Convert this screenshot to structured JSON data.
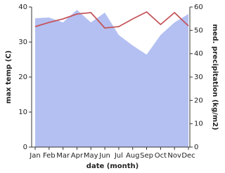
{
  "chart_data": {
    "type": "line",
    "categories": [
      "Jan",
      "Feb",
      "Mar",
      "Apr",
      "May",
      "Jun",
      "Jul",
      "Aug",
      "Sep",
      "Oct",
      "Nov",
      "Dec"
    ],
    "x_label": "date (month)",
    "y_label": "max temp (C)",
    "y2_label": "med. precipitation (kg/m2)",
    "ylim": [
      0,
      40
    ],
    "yticks": [
      0,
      10,
      20,
      30,
      40
    ],
    "y2lim": [
      0,
      60
    ],
    "y2ticks": [
      0,
      10,
      20,
      30,
      40,
      50,
      60
    ],
    "series": [
      {
        "name": "med. precipitation",
        "type": "area",
        "axis": "y2",
        "color": "#b4c0f2",
        "values": [
          55.2,
          55.5,
          53.4,
          58.8,
          53.4,
          57.6,
          48,
          43.5,
          39.6,
          48,
          53.4,
          57
        ]
      },
      {
        "name": "max temp",
        "type": "line",
        "axis": "y",
        "color": "#c4545a",
        "values": [
          34.4,
          35.6,
          36.6,
          38,
          38.4,
          34,
          34.4,
          36.6,
          38.6,
          35,
          38.4,
          34.6
        ]
      }
    ]
  }
}
